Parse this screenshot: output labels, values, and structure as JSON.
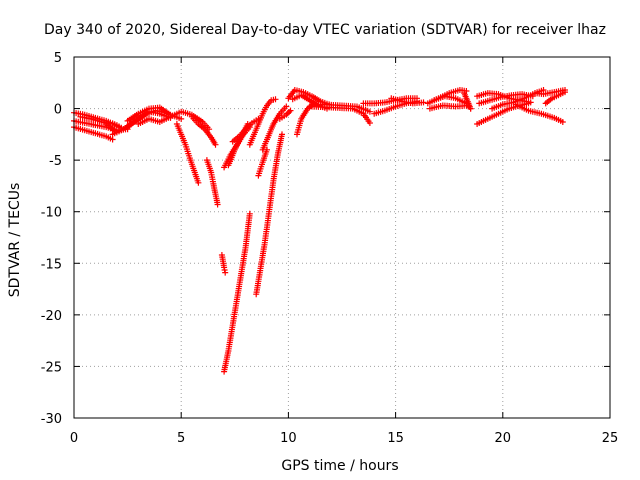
{
  "chart_data": {
    "type": "scatter",
    "title": "Day 340 of 2020, Sidereal Day-to-day VTEC variation (SDTVAR) for receiver lhaz",
    "xlabel": "GPS time / hours",
    "ylabel": "SDTVAR / TECUs",
    "xlim": [
      0,
      25
    ],
    "ylim": [
      -30,
      5
    ],
    "xticks": [
      0,
      5,
      10,
      15,
      20,
      25
    ],
    "yticks": [
      -30,
      -25,
      -20,
      -15,
      -10,
      -5,
      0,
      5
    ],
    "grid": true,
    "marker": "+",
    "colors": {
      "series": "#ff0000",
      "grid": "#a0a0a0",
      "axis": "#000000"
    },
    "tracks": [
      [
        [
          0.0,
          -0.4
        ],
        [
          0.5,
          -0.6
        ],
        [
          1.0,
          -0.9
        ],
        [
          1.5,
          -1.2
        ],
        [
          2.0,
          -1.6
        ],
        [
          2.3,
          -2.0
        ]
      ],
      [
        [
          0.0,
          -1.2
        ],
        [
          0.5,
          -1.4
        ],
        [
          1.0,
          -1.6
        ],
        [
          1.5,
          -1.8
        ],
        [
          2.0,
          -2.1
        ],
        [
          2.5,
          -2.0
        ]
      ],
      [
        [
          0.0,
          -1.8
        ],
        [
          0.5,
          -2.1
        ],
        [
          1.0,
          -2.4
        ],
        [
          1.5,
          -2.7
        ],
        [
          1.8,
          -3.0
        ]
      ],
      [
        [
          0.3,
          -0.8
        ],
        [
          0.8,
          -1.0
        ],
        [
          1.3,
          -1.3
        ],
        [
          1.8,
          -1.5
        ],
        [
          2.2,
          -1.9
        ]
      ],
      [
        [
          1.5,
          -1.5
        ],
        [
          2.0,
          -2.3
        ],
        [
          2.5,
          -1.8
        ],
        [
          3.0,
          -1.0
        ],
        [
          3.5,
          -0.3
        ],
        [
          4.0,
          -0.5
        ],
        [
          4.5,
          -0.9
        ]
      ],
      [
        [
          1.8,
          -2.5
        ],
        [
          2.3,
          -2.0
        ],
        [
          2.8,
          -1.3
        ],
        [
          3.3,
          -0.6
        ],
        [
          3.8,
          -0.2
        ],
        [
          4.3,
          -0.4
        ]
      ],
      [
        [
          2.5,
          -1.2
        ],
        [
          3.0,
          -0.5
        ],
        [
          3.5,
          0.0
        ],
        [
          4.0,
          0.1
        ],
        [
          4.5,
          -0.6
        ],
        [
          5.0,
          -1.0
        ]
      ],
      [
        [
          3.0,
          -1.5
        ],
        [
          3.5,
          -1.0
        ],
        [
          4.0,
          -1.3
        ],
        [
          4.5,
          -0.8
        ],
        [
          5.0,
          -0.3
        ],
        [
          5.5,
          -0.6
        ],
        [
          6.0,
          -1.3
        ],
        [
          6.3,
          -2.0
        ]
      ],
      [
        [
          4.8,
          -1.5
        ],
        [
          5.0,
          -2.5
        ],
        [
          5.2,
          -3.5
        ],
        [
          5.4,
          -4.8
        ],
        [
          5.6,
          -6.0
        ],
        [
          5.8,
          -7.2
        ]
      ],
      [
        [
          5.5,
          -0.8
        ],
        [
          5.8,
          -1.5
        ],
        [
          6.1,
          -2.0
        ],
        [
          6.4,
          -2.8
        ],
        [
          6.6,
          -3.5
        ]
      ],
      [
        [
          6.2,
          -5.0
        ],
        [
          6.4,
          -6.2
        ],
        [
          6.5,
          -7.3
        ],
        [
          6.6,
          -8.3
        ],
        [
          6.7,
          -9.3
        ]
      ],
      [
        [
          6.9,
          -14.2
        ],
        [
          6.95,
          -14.8
        ],
        [
          7.0,
          -15.4
        ],
        [
          7.05,
          -15.9
        ]
      ],
      [
        [
          7.0,
          -25.5
        ],
        [
          7.2,
          -23.5
        ],
        [
          7.4,
          -21.0
        ],
        [
          7.6,
          -18.5
        ],
        [
          7.8,
          -16.0
        ],
        [
          8.0,
          -13.5
        ],
        [
          8.2,
          -10.2
        ]
      ],
      [
        [
          7.0,
          -5.7
        ],
        [
          7.3,
          -4.5
        ],
        [
          7.6,
          -3.5
        ],
        [
          7.9,
          -2.5
        ],
        [
          8.2,
          -1.8
        ]
      ],
      [
        [
          7.2,
          -5.5
        ],
        [
          7.5,
          -4.0
        ],
        [
          7.8,
          -2.8
        ],
        [
          8.1,
          -1.5
        ]
      ],
      [
        [
          7.4,
          -3.2
        ],
        [
          7.7,
          -2.7
        ],
        [
          8.0,
          -2.0
        ],
        [
          8.3,
          -1.4
        ],
        [
          8.6,
          -1.0
        ]
      ],
      [
        [
          8.2,
          -3.5
        ],
        [
          8.4,
          -2.5
        ],
        [
          8.6,
          -1.5
        ],
        [
          8.8,
          -0.5
        ],
        [
          9.0,
          0.3
        ],
        [
          9.2,
          0.8
        ],
        [
          9.4,
          0.9
        ]
      ],
      [
        [
          8.5,
          -18.0
        ],
        [
          8.7,
          -15.5
        ],
        [
          8.9,
          -13.0
        ],
        [
          9.1,
          -10.0
        ],
        [
          9.3,
          -7.0
        ],
        [
          9.5,
          -4.5
        ],
        [
          9.7,
          -2.5
        ]
      ],
      [
        [
          8.8,
          -4.0
        ],
        [
          9.0,
          -3.0
        ],
        [
          9.3,
          -1.5
        ],
        [
          9.6,
          -0.5
        ],
        [
          9.9,
          0.2
        ]
      ],
      [
        [
          8.6,
          -6.5
        ],
        [
          8.8,
          -5.2
        ],
        [
          9.0,
          -4.0
        ]
      ],
      [
        [
          9.6,
          -1.0
        ],
        [
          9.9,
          -0.6
        ],
        [
          10.1,
          -0.2
        ]
      ],
      [
        [
          10.0,
          1.0
        ],
        [
          10.3,
          1.8
        ],
        [
          10.7,
          1.6
        ],
        [
          11.1,
          1.2
        ],
        [
          11.5,
          0.7
        ],
        [
          11.9,
          0.4
        ]
      ],
      [
        [
          10.2,
          0.9
        ],
        [
          10.6,
          1.3
        ],
        [
          11.0,
          0.8
        ],
        [
          11.4,
          0.3
        ],
        [
          11.8,
          0.0
        ]
      ],
      [
        [
          10.4,
          -2.5
        ],
        [
          10.6,
          -1.0
        ],
        [
          10.9,
          0.0
        ],
        [
          11.2,
          0.5
        ],
        [
          11.5,
          0.3
        ]
      ],
      [
        [
          11.0,
          0.2
        ],
        [
          12.0,
          0.1
        ],
        [
          13.0,
          0.0
        ],
        [
          13.5,
          -0.5
        ],
        [
          13.8,
          -1.4
        ]
      ],
      [
        [
          11.6,
          0.4
        ],
        [
          12.5,
          0.3
        ],
        [
          13.2,
          0.2
        ],
        [
          13.8,
          -0.3
        ]
      ],
      [
        [
          13.5,
          0.5
        ],
        [
          14.0,
          0.5
        ],
        [
          14.5,
          0.6
        ],
        [
          15.0,
          0.8
        ],
        [
          15.5,
          1.0
        ],
        [
          16.0,
          1.0
        ]
      ],
      [
        [
          14.0,
          -0.5
        ],
        [
          14.5,
          -0.2
        ],
        [
          15.0,
          0.2
        ],
        [
          15.5,
          0.5
        ],
        [
          16.0,
          0.7
        ]
      ],
      [
        [
          14.8,
          1.0
        ],
        [
          15.3,
          0.7
        ],
        [
          15.8,
          0.5
        ],
        [
          16.3,
          0.6
        ]
      ],
      [
        [
          16.5,
          0.5
        ],
        [
          17.0,
          1.0
        ],
        [
          17.5,
          1.5
        ],
        [
          18.0,
          1.8
        ],
        [
          18.3,
          1.7
        ]
      ],
      [
        [
          16.8,
          0.8
        ],
        [
          17.3,
          1.2
        ],
        [
          17.8,
          1.0
        ],
        [
          18.3,
          0.5
        ],
        [
          18.5,
          0.0
        ]
      ],
      [
        [
          16.6,
          0.0
        ],
        [
          17.2,
          0.3
        ],
        [
          17.8,
          0.2
        ],
        [
          18.4,
          0.3
        ]
      ],
      [
        [
          18.2,
          1.5
        ],
        [
          18.3,
          1.0
        ],
        [
          18.4,
          0.5
        ],
        [
          18.5,
          0.0
        ]
      ],
      [
        [
          18.8,
          -1.5
        ],
        [
          19.3,
          -1.0
        ],
        [
          19.8,
          -0.5
        ],
        [
          20.3,
          0.0
        ],
        [
          20.8,
          0.3
        ],
        [
          21.2,
          0.5
        ]
      ],
      [
        [
          18.8,
          1.2
        ],
        [
          19.3,
          1.5
        ],
        [
          19.8,
          1.4
        ],
        [
          20.3,
          1.0
        ],
        [
          20.8,
          0.8
        ],
        [
          21.3,
          0.6
        ]
      ],
      [
        [
          18.9,
          0.5
        ],
        [
          19.4,
          0.8
        ],
        [
          19.9,
          1.1
        ],
        [
          20.4,
          1.3
        ],
        [
          20.9,
          1.4
        ],
        [
          21.4,
          1.2
        ]
      ],
      [
        [
          19.5,
          0.0
        ],
        [
          20.0,
          0.4
        ],
        [
          20.5,
          0.6
        ],
        [
          21.0,
          1.0
        ],
        [
          21.5,
          1.5
        ],
        [
          21.9,
          1.8
        ]
      ],
      [
        [
          20.6,
          0.4
        ],
        [
          21.2,
          -0.2
        ],
        [
          21.8,
          -0.5
        ],
        [
          22.4,
          -0.9
        ],
        [
          22.8,
          -1.3
        ]
      ],
      [
        [
          21.5,
          1.5
        ],
        [
          21.9,
          1.4
        ],
        [
          22.4,
          1.6
        ],
        [
          22.9,
          1.8
        ]
      ],
      [
        [
          22.0,
          0.5
        ],
        [
          22.3,
          1.0
        ],
        [
          22.6,
          1.3
        ],
        [
          22.9,
          1.6
        ]
      ]
    ]
  }
}
